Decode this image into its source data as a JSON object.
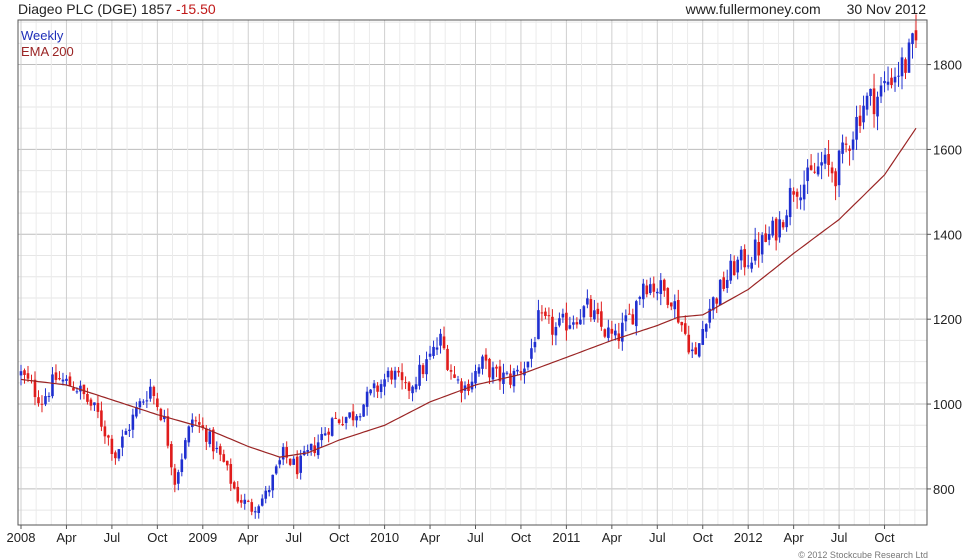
{
  "header": {
    "title_prefix": "Diageo PLC (DGE) 1857",
    "change": "-15.50",
    "site": "www.fullermoney.com",
    "date": "30 Nov 2012"
  },
  "legend": {
    "weekly": "Weekly",
    "ema": "EMA 200"
  },
  "credit": "© 2012 Stockcube Research Ltd",
  "colors": {
    "up": "#1f2fd0",
    "down": "#e01c1c",
    "ema": "#9a2424",
    "grid": "#d9d9d9"
  },
  "chart_data": {
    "type": "candlestick",
    "ylim": [
      715,
      1905
    ],
    "y_ticks": [
      800,
      1000,
      1200,
      1400,
      1600,
      1800
    ],
    "x_ticks": [
      "2008",
      "Apr",
      "Jul",
      "Oct",
      "2009",
      "Apr",
      "Jul",
      "Oct",
      "2010",
      "Apr",
      "Jul",
      "Oct",
      "2011",
      "Apr",
      "Jul",
      "Oct",
      "2012",
      "Apr",
      "Jul",
      "Oct"
    ],
    "weeks_total": 257,
    "x_tick_weeks": [
      0,
      13,
      26,
      39,
      52,
      65,
      78,
      91,
      104,
      117,
      130,
      143,
      156,
      169,
      182,
      195,
      208,
      221,
      234,
      247
    ],
    "price_anchors": [
      [
        0,
        1070
      ],
      [
        6,
        1010
      ],
      [
        10,
        1060
      ],
      [
        16,
        1040
      ],
      [
        22,
        975
      ],
      [
        27,
        880
      ],
      [
        33,
        985
      ],
      [
        37,
        1040
      ],
      [
        41,
        960
      ],
      [
        44,
        820
      ],
      [
        49,
        965
      ],
      [
        53,
        930
      ],
      [
        58,
        860
      ],
      [
        62,
        780
      ],
      [
        66,
        755
      ],
      [
        70,
        785
      ],
      [
        75,
        880
      ],
      [
        79,
        850
      ],
      [
        84,
        900
      ],
      [
        89,
        960
      ],
      [
        95,
        975
      ],
      [
        100,
        1020
      ],
      [
        106,
        1075
      ],
      [
        110,
        1030
      ],
      [
        116,
        1095
      ],
      [
        120,
        1150
      ],
      [
        124,
        1060
      ],
      [
        127,
        1040
      ],
      [
        132,
        1095
      ],
      [
        136,
        1065
      ],
      [
        140,
        1060
      ],
      [
        145,
        1100
      ],
      [
        148,
        1195
      ],
      [
        153,
        1175
      ],
      [
        158,
        1205
      ],
      [
        162,
        1225
      ],
      [
        166,
        1180
      ],
      [
        170,
        1150
      ],
      [
        175,
        1215
      ],
      [
        178,
        1290
      ],
      [
        182,
        1275
      ],
      [
        186,
        1255
      ],
      [
        190,
        1165
      ],
      [
        193,
        1105
      ],
      [
        196,
        1215
      ],
      [
        199,
        1255
      ],
      [
        204,
        1325
      ],
      [
        208,
        1345
      ],
      [
        213,
        1385
      ],
      [
        217,
        1425
      ],
      [
        221,
        1515
      ],
      [
        225,
        1525
      ],
      [
        229,
        1565
      ],
      [
        233,
        1545
      ],
      [
        237,
        1625
      ],
      [
        241,
        1710
      ],
      [
        245,
        1725
      ],
      [
        249,
        1775
      ],
      [
        253,
        1800
      ],
      [
        256,
        1857
      ]
    ],
    "ema_anchors": [
      [
        0,
        1058
      ],
      [
        13,
        1045
      ],
      [
        26,
        1010
      ],
      [
        39,
        975
      ],
      [
        52,
        945
      ],
      [
        65,
        900
      ],
      [
        74,
        875
      ],
      [
        82,
        885
      ],
      [
        91,
        915
      ],
      [
        104,
        950
      ],
      [
        117,
        1005
      ],
      [
        130,
        1045
      ],
      [
        143,
        1070
      ],
      [
        156,
        1110
      ],
      [
        169,
        1150
      ],
      [
        182,
        1185
      ],
      [
        188,
        1205
      ],
      [
        195,
        1210
      ],
      [
        208,
        1270
      ],
      [
        221,
        1355
      ],
      [
        234,
        1435
      ],
      [
        247,
        1540
      ],
      [
        256,
        1650
      ]
    ]
  }
}
